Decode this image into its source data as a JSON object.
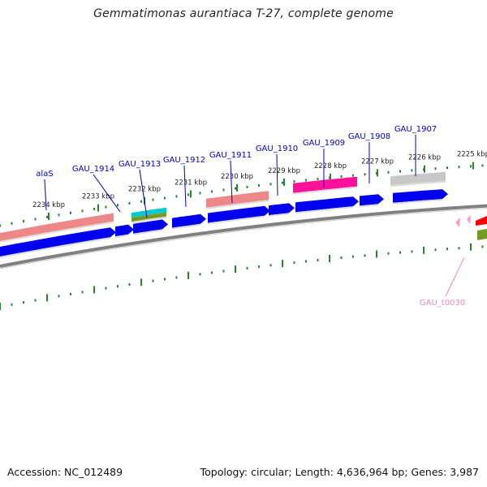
{
  "title": "Gemmatimonas aurantiaca T-27, complete genome",
  "footer": {
    "accession": "Accession: NC_012489",
    "summary": "Topology: circular; Length: 4,636,964 bp; Genes: 3,987"
  },
  "ruler_ticks": [
    {
      "label": "2225 kbp"
    },
    {
      "label": "2226 kbp"
    },
    {
      "label": "2227 kbp"
    },
    {
      "label": "2228 kbp"
    },
    {
      "label": "2229 kbp"
    },
    {
      "label": "2230 kbp"
    },
    {
      "label": "2231 kbp"
    },
    {
      "label": "2232 kbp"
    },
    {
      "label": "2233 kbp"
    },
    {
      "label": "2234 kbp"
    }
  ],
  "gene_labels": [
    {
      "label": "alaS",
      "color": "#0000cc"
    },
    {
      "label": "GAU_1914",
      "color": "#0000cc"
    },
    {
      "label": "GAU_1913",
      "color": "#0000cc"
    },
    {
      "label": "GAU_1912",
      "color": "#0000cc"
    },
    {
      "label": "GAU_1911",
      "color": "#0000cc"
    },
    {
      "label": "GAU_1910",
      "color": "#0000cc"
    },
    {
      "label": "GAU_1909",
      "color": "#0000cc"
    },
    {
      "label": "GAU_1908",
      "color": "#0000cc"
    },
    {
      "label": "GAU_1907",
      "color": "#0000cc"
    },
    {
      "label": "GAU_t0030",
      "color": "#ee88bb"
    }
  ],
  "colors": {
    "cds": "#0000ee",
    "feature_salmon": "#ee8888",
    "feature_magenta": "#ff1199",
    "feature_cyan": "#00cccc",
    "feature_olive": "#779922",
    "feature_gray": "#c8c8c8",
    "feature_red": "#ff0000",
    "trna": "#ff99cc",
    "ruler": "#22882a",
    "backbone": "#808080"
  }
}
